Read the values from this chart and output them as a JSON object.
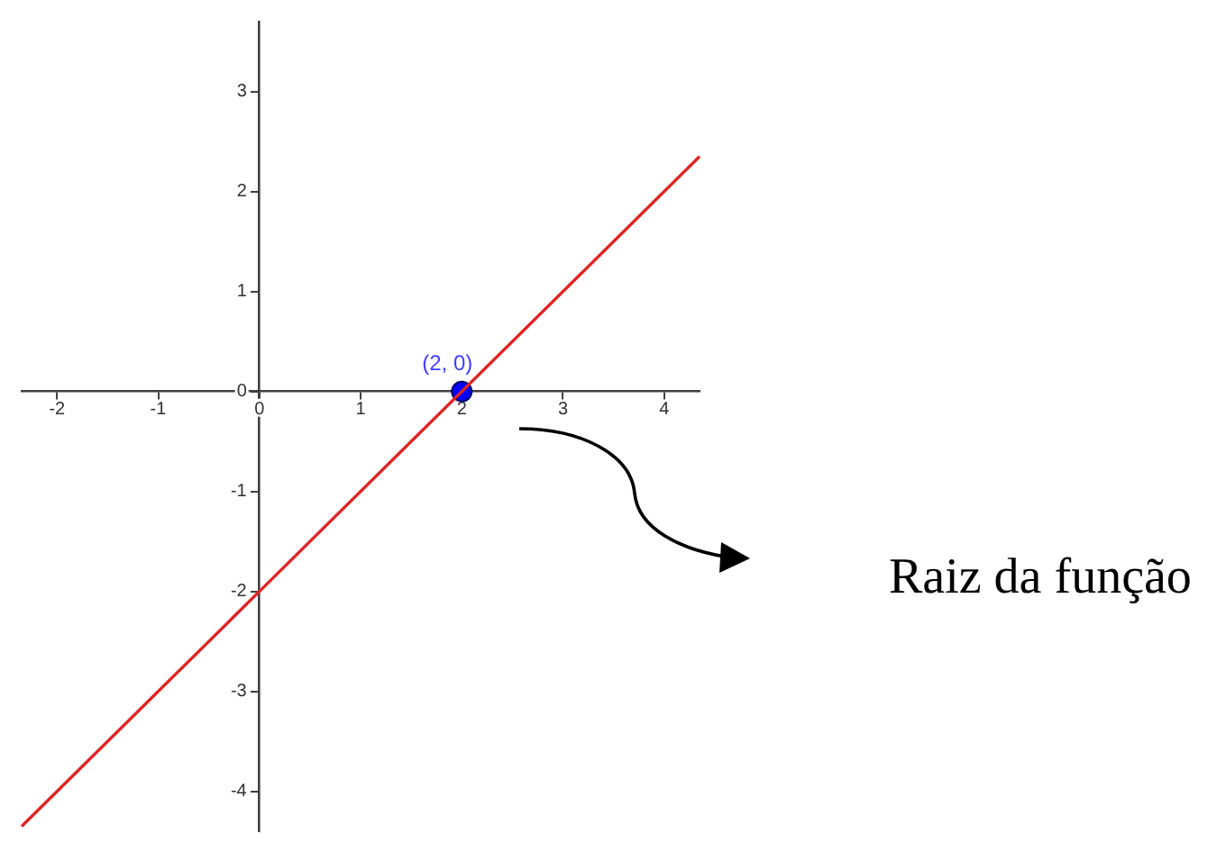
{
  "chart_data": {
    "type": "line",
    "annotations": [
      {
        "text": "(2, 0)",
        "x": 2,
        "y": 0
      },
      "Raiz da função"
    ],
    "series": [
      {
        "type": "line",
        "x": [
          -2.35,
          0,
          4.35
        ],
        "values": [
          -4.35,
          -2,
          2.35
        ],
        "color": "#e02424",
        "marker": "none"
      },
      {
        "type": "scatter",
        "x": [
          2
        ],
        "values": [
          0
        ],
        "color": "#0000ff",
        "marker": "circle"
      }
    ],
    "xlim": [
      -2.35,
      4.35
    ],
    "ylim": [
      -4.4,
      3.7
    ],
    "xticks": [
      -2,
      -1,
      0,
      1,
      2,
      3,
      4
    ],
    "yticks": [
      -4,
      -3,
      -2,
      -1,
      0,
      1,
      2,
      3
    ]
  }
}
